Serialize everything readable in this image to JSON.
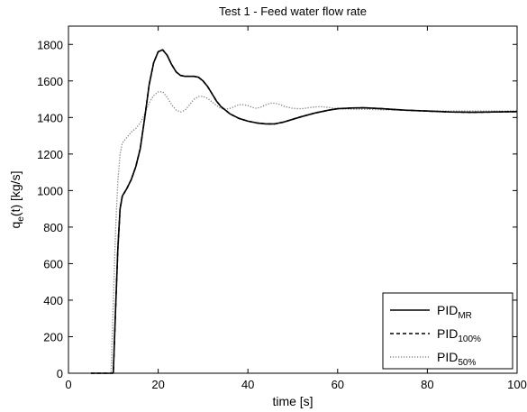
{
  "chart_data": {
    "type": "line",
    "title": "Test 1 - Feed water flow rate",
    "xlabel": "time [s]",
    "ylabel": {
      "base": "q",
      "sub": "e",
      "rest": "(t) [kg/s]"
    },
    "xlim": [
      0,
      100
    ],
    "ylim": [
      0,
      1900
    ],
    "xticks": [
      0,
      20,
      40,
      60,
      80,
      100
    ],
    "yticks": [
      0,
      200,
      400,
      600,
      800,
      1000,
      1200,
      1400,
      1600,
      1800
    ],
    "xtick_labels": [
      "0",
      "20",
      "40",
      "60",
      "80",
      "100"
    ],
    "ytick_labels": [
      "0",
      "200",
      "400",
      "600",
      "800",
      "1000",
      "1200",
      "1400",
      "1600",
      "1800"
    ],
    "grid": false,
    "legend_position": "bottom-right",
    "series": [
      {
        "name": "PID_MR",
        "label_base": "PID",
        "label_sub": "MR",
        "style": "solid",
        "color": "#000000",
        "x": [
          5,
          9.8,
          10,
          10.5,
          11,
          11.5,
          12,
          13,
          14,
          15,
          16,
          17,
          18,
          19,
          20,
          21,
          22,
          23,
          24,
          25,
          26,
          27,
          28,
          29,
          30,
          31,
          32,
          33,
          34,
          35,
          36,
          38,
          40,
          42,
          44,
          46,
          48,
          50,
          52,
          55,
          58,
          60,
          63,
          66,
          70,
          75,
          80,
          85,
          90,
          95,
          100
        ],
        "y": [
          0,
          0,
          5,
          350,
          680,
          900,
          970,
          1010,
          1060,
          1130,
          1230,
          1400,
          1580,
          1700,
          1760,
          1770,
          1740,
          1690,
          1650,
          1630,
          1625,
          1625,
          1625,
          1620,
          1600,
          1570,
          1530,
          1490,
          1460,
          1440,
          1420,
          1395,
          1380,
          1370,
          1365,
          1365,
          1375,
          1390,
          1405,
          1425,
          1440,
          1448,
          1452,
          1453,
          1448,
          1440,
          1435,
          1430,
          1428,
          1430,
          1432
        ]
      },
      {
        "name": "PID_100%",
        "label_base": "PID",
        "label_sub": "100%",
        "style": "dashed",
        "color": "#000000",
        "x": [
          5,
          9.8,
          10,
          10.5,
          11,
          11.5,
          12,
          13,
          14,
          15,
          16,
          17,
          18,
          19,
          20,
          21,
          22,
          23,
          24,
          25,
          26,
          27,
          28,
          29,
          30,
          31,
          32,
          33,
          34,
          35,
          36,
          38,
          40,
          42,
          44,
          46,
          48,
          50,
          52,
          55,
          58,
          60,
          63,
          66,
          70,
          75,
          80,
          85,
          90,
          95,
          100
        ],
        "y": [
          0,
          0,
          5,
          350,
          680,
          900,
          970,
          1010,
          1060,
          1130,
          1230,
          1400,
          1580,
          1700,
          1760,
          1770,
          1740,
          1690,
          1650,
          1630,
          1625,
          1625,
          1625,
          1620,
          1600,
          1570,
          1530,
          1490,
          1460,
          1440,
          1420,
          1395,
          1380,
          1370,
          1365,
          1365,
          1375,
          1390,
          1405,
          1425,
          1440,
          1448,
          1452,
          1453,
          1448,
          1440,
          1435,
          1430,
          1428,
          1430,
          1432
        ]
      },
      {
        "name": "PID_50%",
        "label_base": "PID",
        "label_sub": "50%",
        "style": "dotted",
        "color": "#7a7a7a",
        "x": [
          5,
          9.5,
          10,
          10.5,
          11,
          11.5,
          12,
          13,
          14,
          15,
          16,
          17,
          18,
          19,
          20,
          21,
          22,
          23,
          24,
          25,
          26,
          27,
          28,
          29,
          30,
          31,
          32,
          33,
          34,
          35,
          36,
          37,
          38,
          39,
          40,
          41,
          42,
          43,
          44,
          45,
          46,
          47,
          48,
          50,
          52,
          54,
          56,
          58,
          60,
          63,
          66,
          70,
          75,
          80,
          85,
          90,
          95,
          100
        ],
        "y": [
          0,
          0,
          400,
          780,
          1050,
          1200,
          1260,
          1290,
          1320,
          1340,
          1370,
          1420,
          1480,
          1520,
          1540,
          1540,
          1510,
          1470,
          1440,
          1430,
          1440,
          1470,
          1500,
          1515,
          1515,
          1505,
          1485,
          1465,
          1450,
          1445,
          1450,
          1460,
          1470,
          1470,
          1465,
          1455,
          1450,
          1458,
          1470,
          1478,
          1478,
          1472,
          1462,
          1450,
          1448,
          1455,
          1460,
          1455,
          1448,
          1445,
          1445,
          1442,
          1440,
          1437,
          1435,
          1435,
          1435,
          1436
        ]
      }
    ]
  }
}
